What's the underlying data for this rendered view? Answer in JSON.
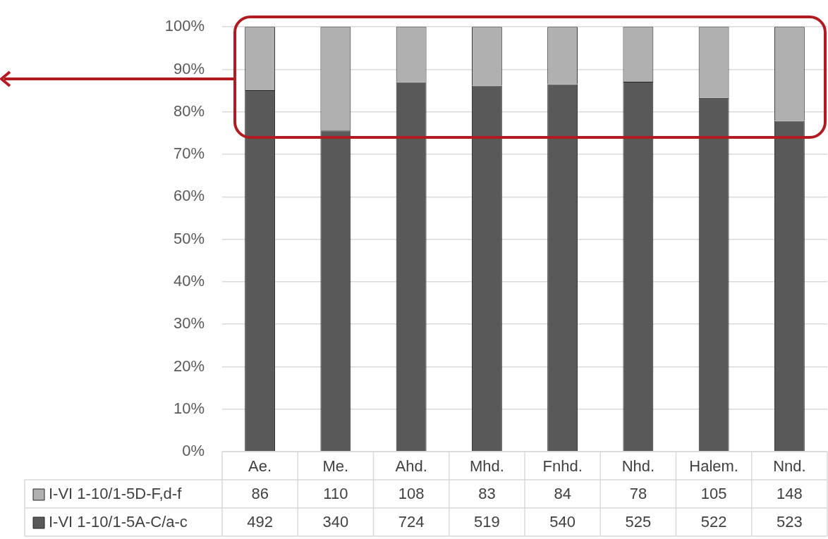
{
  "chart_data": {
    "type": "bar",
    "stacked": true,
    "categories": [
      "Ae.",
      "Me.",
      "Ahd.",
      "Mhd.",
      "Fnhd.",
      "Nhd.",
      "Halem.",
      "Nnd."
    ],
    "series": [
      {
        "name": "I-VI 1-10/1-5A-C/a-c",
        "color": "#595959",
        "values": [
          85.1,
          75.6,
          87.0,
          86.2,
          86.5,
          87.1,
          83.3,
          77.9
        ]
      },
      {
        "name": "I-VI 1-10/1-5D-F,d-f",
        "color": "#b0b0b0",
        "values": [
          14.9,
          24.4,
          13.0,
          13.8,
          13.5,
          12.9,
          16.7,
          22.1
        ]
      }
    ],
    "annotations": [
      "86",
      "110",
      "108",
      "83",
      "84",
      "78",
      "105",
      "148",
      "492",
      "340",
      "724",
      "519",
      "540",
      "525",
      "522",
      "523"
    ],
    "legend": "bottom left",
    "ylim": [
      0,
      100
    ],
    "yticks": [
      {
        "value": 0,
        "label": "0%"
      },
      {
        "value": 10,
        "label": "10%"
      },
      {
        "value": 20,
        "label": "20%"
      },
      {
        "value": 30,
        "label": "30%"
      },
      {
        "value": 40,
        "label": "40%"
      },
      {
        "value": 50,
        "label": "50%"
      },
      {
        "value": 60,
        "label": "60%"
      },
      {
        "value": 70,
        "label": "70%"
      },
      {
        "value": 80,
        "label": "80%"
      },
      {
        "value": 90,
        "label": "90%"
      },
      {
        "value": 100,
        "label": "100%"
      }
    ],
    "grid": "y"
  }
}
